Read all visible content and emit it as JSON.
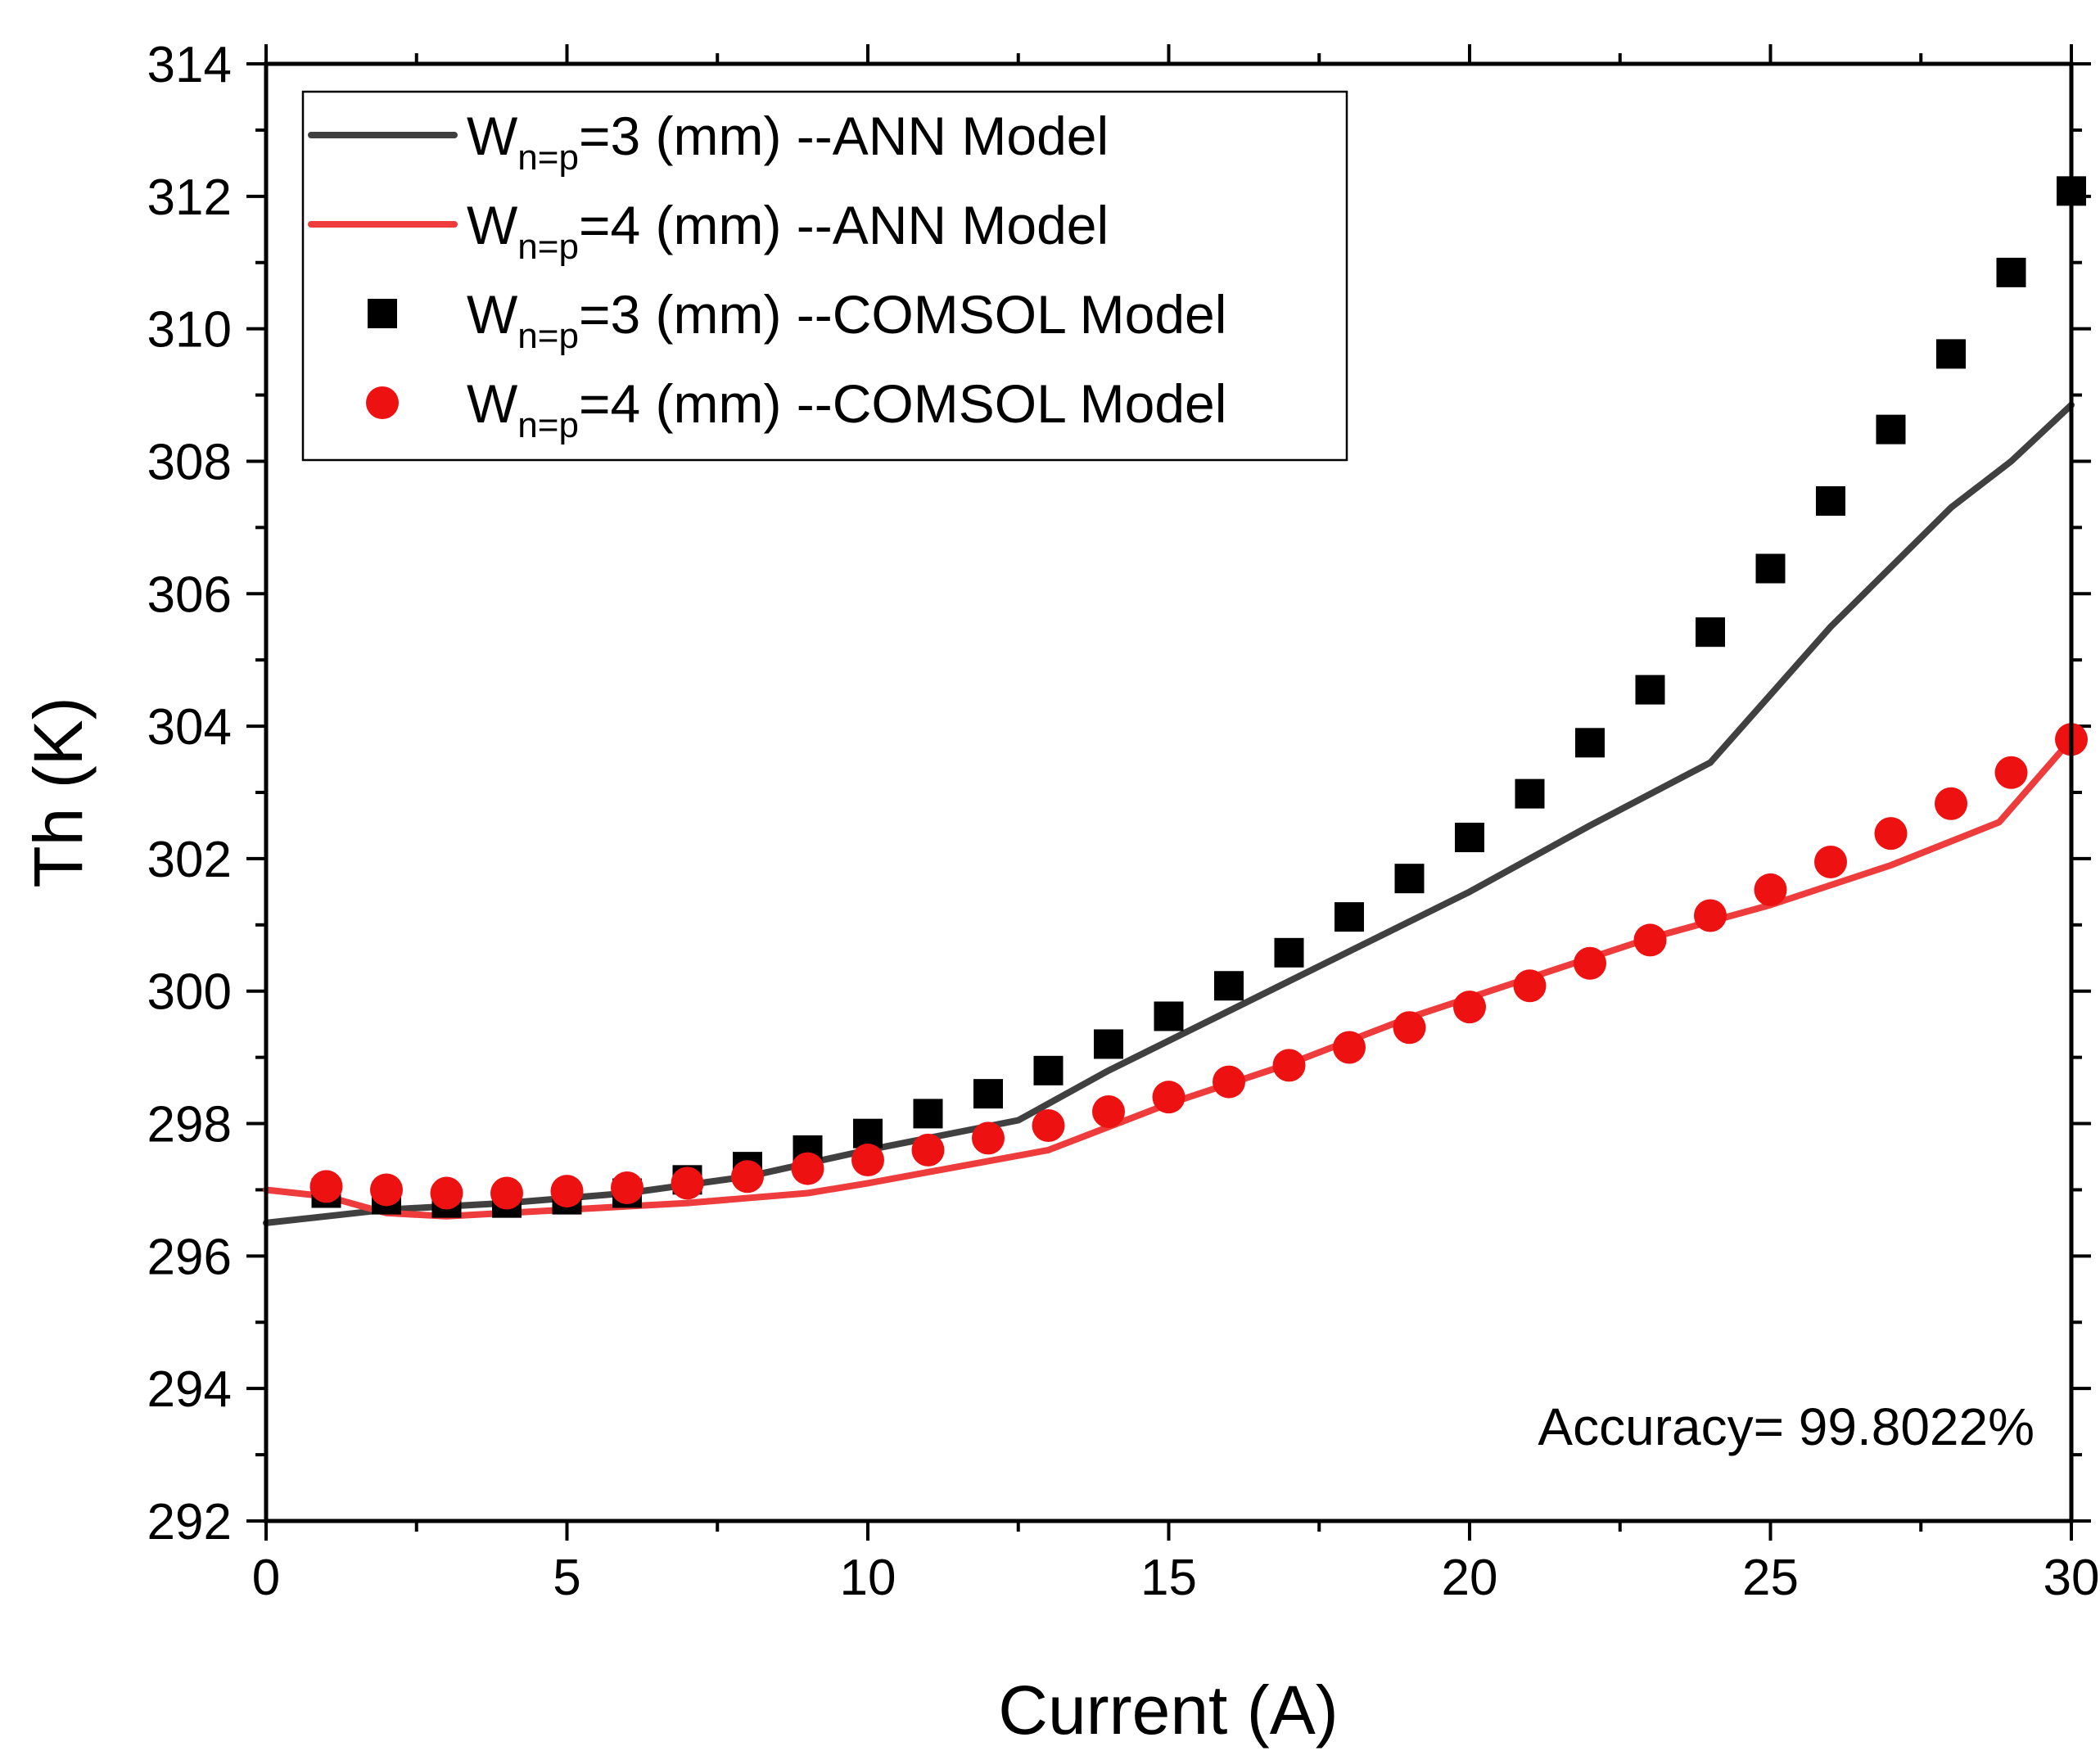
{
  "chart_data": {
    "type": "line",
    "xlabel": "Current (A)",
    "ylabel": "Th (K)",
    "xlim": [
      0,
      30
    ],
    "ylim": [
      292,
      314
    ],
    "xticks": [
      "0",
      "5",
      "10",
      "15",
      "20",
      "25",
      "30"
    ],
    "yticks": [
      "292",
      "294",
      "296",
      "298",
      "300",
      "302",
      "304",
      "306",
      "308",
      "310",
      "312",
      "314"
    ],
    "grid": false,
    "legend_position": "top-left",
    "annotation": "Accuracy= 99.8022%",
    "series": [
      {
        "kind": "line",
        "legend": {
          "base": "W",
          "sub": "n=p",
          "rest": "=3 (mm) --ANN Model"
        },
        "color": "#404040",
        "x": [
          0,
          2,
          4,
          6,
          8,
          10,
          12.5,
          14,
          16,
          18,
          20,
          22,
          24,
          26,
          28,
          29,
          30
        ],
        "y": [
          296.5,
          296.7,
          296.8,
          296.95,
          297.2,
          297.6,
          298.05,
          298.8,
          299.7,
          300.6,
          301.5,
          302.5,
          303.45,
          305.5,
          307.3,
          308.0,
          308.85
        ]
      },
      {
        "kind": "line",
        "legend": {
          "base": "W",
          "sub": "n=p",
          "rest": "=4 (mm) --ANN Model"
        },
        "color": "#ee3b3b",
        "x": [
          0,
          1,
          2,
          3,
          5,
          7,
          9,
          10,
          13,
          15,
          17,
          19,
          21,
          23,
          25,
          27,
          28.8,
          30
        ],
        "y": [
          297.0,
          296.9,
          296.65,
          296.6,
          296.7,
          296.8,
          296.95,
          297.1,
          297.6,
          298.3,
          298.9,
          299.6,
          300.2,
          300.8,
          301.3,
          301.9,
          302.55,
          303.8
        ]
      },
      {
        "kind": "scatter",
        "marker": "square",
        "legend": {
          "base": "W",
          "sub": "n=p",
          "rest": "=3 (mm) --COMSOL Model"
        },
        "color": "#000000",
        "x": [
          1,
          2,
          3,
          4,
          5,
          6,
          7,
          8,
          9,
          10,
          11,
          12,
          13,
          14,
          15,
          16,
          17,
          18,
          19,
          20,
          21,
          22,
          23,
          24,
          25,
          26,
          27,
          28,
          29,
          30
        ],
        "y": [
          296.95,
          296.85,
          296.8,
          296.8,
          296.85,
          296.95,
          297.15,
          297.35,
          297.6,
          297.85,
          298.15,
          298.45,
          298.8,
          299.2,
          299.62,
          300.08,
          300.58,
          301.12,
          301.7,
          302.32,
          302.98,
          303.75,
          304.55,
          305.42,
          306.38,
          307.4,
          308.48,
          309.62,
          310.85,
          312.08
        ]
      },
      {
        "kind": "scatter",
        "marker": "circle",
        "legend": {
          "base": "W",
          "sub": "n=p",
          "rest": "=4 (mm) --COMSOL Model"
        },
        "color": "#ee1111",
        "x": [
          1,
          2,
          3,
          4,
          5,
          6,
          7,
          8,
          9,
          10,
          11,
          12,
          13,
          14,
          15,
          16,
          17,
          18,
          19,
          20,
          21,
          22,
          23,
          24,
          25,
          26,
          27,
          28,
          29,
          30
        ],
        "y": [
          297.05,
          297.0,
          296.95,
          296.95,
          296.98,
          297.03,
          297.1,
          297.2,
          297.32,
          297.45,
          297.6,
          297.78,
          297.97,
          298.18,
          298.4,
          298.63,
          298.88,
          299.15,
          299.45,
          299.76,
          300.08,
          300.42,
          300.77,
          301.14,
          301.53,
          301.95,
          302.38,
          302.83,
          303.3,
          303.8
        ]
      }
    ]
  }
}
